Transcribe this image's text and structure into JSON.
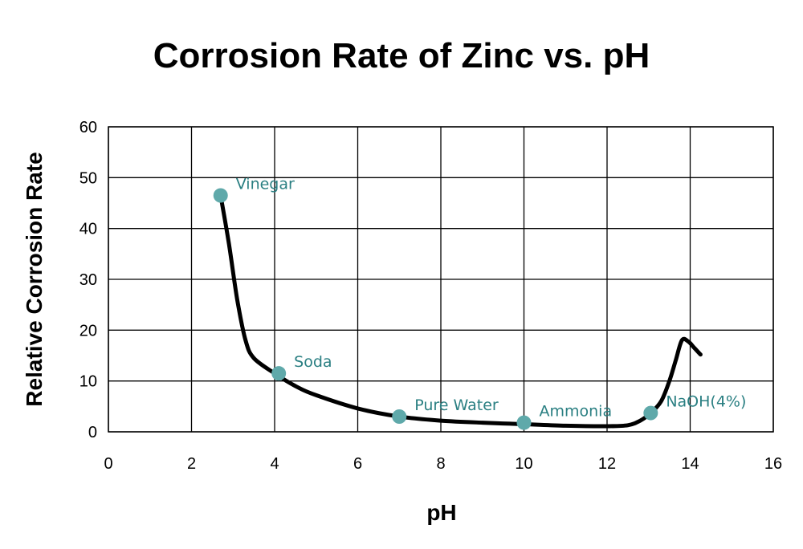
{
  "chart_data": {
    "type": "line",
    "title": "Corrosion Rate of Zinc vs. pH",
    "xlabel": "pH",
    "ylabel": "Relative Corrosion Rate",
    "xlim": [
      0,
      16
    ],
    "ylim": [
      0,
      60
    ],
    "xticks": [
      0,
      2,
      4,
      6,
      8,
      10,
      12,
      14,
      16
    ],
    "yticks": [
      0,
      10,
      20,
      30,
      40,
      50,
      60
    ],
    "grid": true,
    "legend": "none",
    "series": [
      {
        "x": [
          2.7,
          2.9,
          3.1,
          3.3,
          3.5,
          4.0,
          4.5,
          5.0,
          6.0,
          7.0,
          8.0,
          9.0,
          10.0,
          11.0,
          12.0,
          12.5,
          12.8,
          13.05,
          13.3,
          13.5,
          13.65,
          13.8,
          13.95,
          14.1,
          14.25
        ],
        "y": [
          46.5,
          37,
          26,
          18,
          14.5,
          11.5,
          9,
          7.2,
          4.6,
          3.0,
          2.2,
          1.8,
          1.5,
          1.2,
          1.1,
          1.3,
          2.2,
          3.7,
          6,
          10,
          14,
          18,
          17.8,
          16.5,
          15.2
        ]
      }
    ],
    "annotations": [
      {
        "label": "Vinegar",
        "x": 2.7,
        "y": 46.5
      },
      {
        "label": "Soda",
        "x": 4.1,
        "y": 11.5
      },
      {
        "label": "Pure Water",
        "x": 7.0,
        "y": 3.0
      },
      {
        "label": "Ammonia",
        "x": 10.0,
        "y": 1.8
      },
      {
        "label": "NaOH(4%)",
        "x": 13.05,
        "y": 3.7
      }
    ],
    "colors": {
      "line": "#000000",
      "marker": "#5fa9aa",
      "annotation_text": "#2a7f82",
      "grid": "#000000"
    }
  }
}
